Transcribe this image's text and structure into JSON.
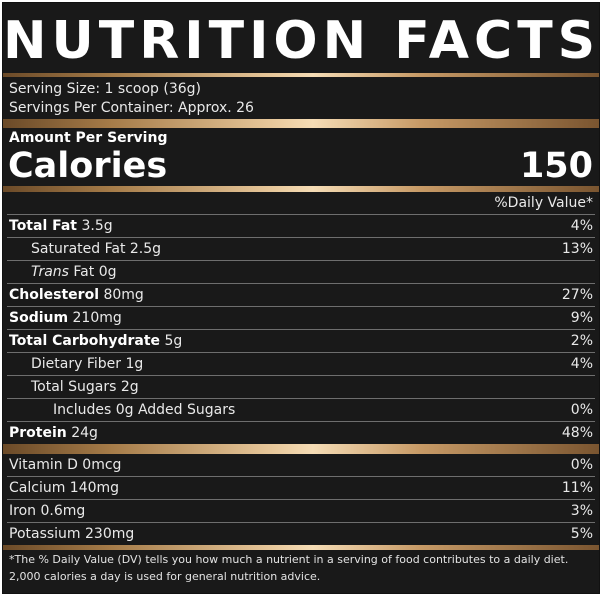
{
  "title": "NUTRITION FACTS",
  "serving": {
    "size": "Serving Size: 1 scoop (36g)",
    "per_container": "Servings Per Container: Approx. 26"
  },
  "amount_per_serving": "Amount Per Serving",
  "calories": {
    "label": "Calories",
    "value": "150"
  },
  "dv_header": "%Daily Value*",
  "nutrients": [
    {
      "name": "Total Fat",
      "amount": " 3.5g",
      "dv": "4%"
    },
    {
      "name": "Saturated Fat 2.5g",
      "amount": "",
      "dv": "13%"
    },
    {
      "name_italic": "Trans",
      "amount": " Fat 0g",
      "dv": ""
    },
    {
      "name": "Cholesterol",
      "amount": " 80mg",
      "dv": "27%"
    },
    {
      "name": "Sodium",
      "amount": " 210mg",
      "dv": "9%"
    },
    {
      "name": "Total Carbohydrate",
      "amount": " 5g",
      "dv": "2%"
    },
    {
      "name": "Dietary Fiber 1g",
      "amount": "",
      "dv": "4%"
    },
    {
      "name": "Total Sugars 2g",
      "amount": "",
      "dv": ""
    },
    {
      "name": "Includes 0g Added Sugars",
      "amount": "",
      "dv": "0%"
    },
    {
      "name": "Protein",
      "amount": " 24g",
      "dv": "48%"
    }
  ],
  "vitamins": [
    {
      "name": "Vitamin D 0mcg",
      "dv": "0%"
    },
    {
      "name": "Calcium 140mg",
      "dv": "11%"
    },
    {
      "name": "Iron 0.6mg",
      "dv": "3%"
    },
    {
      "name": "Potassium 230mg",
      "dv": "5%"
    }
  ],
  "footnote": "*The % Daily Value (DV) tells you how much a nutrient in a serving of food contributes to a daily diet. 2,000 calories a day is used for general nutrition advice.",
  "colors": {
    "background": "#191919",
    "text": "#ededed",
    "gold_accent": "#e7c79a"
  }
}
